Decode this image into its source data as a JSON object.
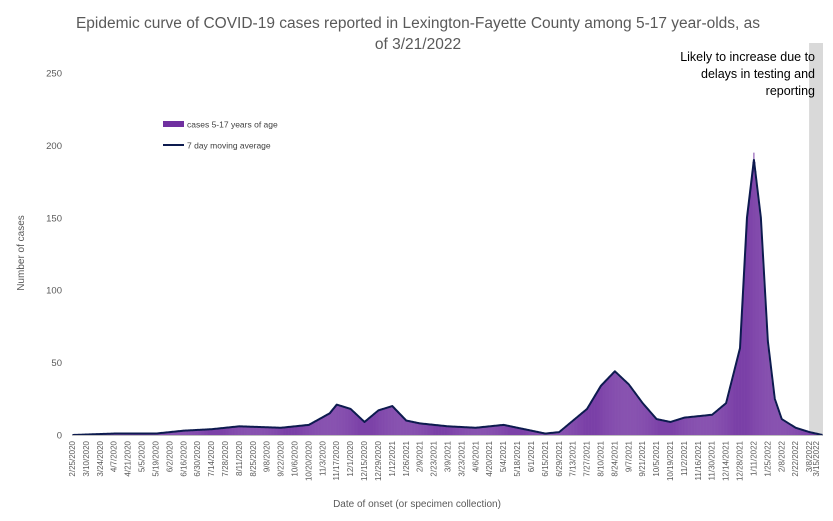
{
  "chart_data": {
    "type": "bar",
    "title": "Epidemic curve of COVID-19 cases reported in Lexington-Fayette County among 5-17 year-olds, as of 3/21/2022",
    "title_lines": [
      "Epidemic curve of COVID-19 cases reported in Lexington-Fayette County among 5-17 year-olds, as",
      "of 3/21/2022"
    ],
    "xlabel": "Date of onset (or specimen collection)",
    "ylabel": "Number of cases",
    "ylim": [
      0,
      250
    ],
    "yticks": [
      0,
      50,
      100,
      150,
      200,
      250
    ],
    "x_start_date": "2020-02-25",
    "x_end_date": "2022-03-21",
    "x_tick_labels": [
      "2/25/2020",
      "3/10/2020",
      "3/24/2020",
      "4/7/2020",
      "4/21/2020",
      "5/5/2020",
      "5/19/2020",
      "6/2/2020",
      "6/16/2020",
      "6/30/2020",
      "7/14/2020",
      "7/28/2020",
      "8/11/2020",
      "8/25/2020",
      "9/8/2020",
      "9/22/2020",
      "10/6/2020",
      "10/20/2020",
      "11/3/2020",
      "11/17/2020",
      "12/1/2020",
      "12/15/2020",
      "12/29/2020",
      "1/12/2021",
      "1/26/2021",
      "2/9/2021",
      "2/23/2021",
      "3/9/2021",
      "3/23/2021",
      "4/6/2021",
      "4/20/2021",
      "5/4/2021",
      "5/18/2021",
      "6/1/2021",
      "6/15/2021",
      "6/29/2021",
      "7/13/2021",
      "7/27/2021",
      "8/10/2021",
      "8/24/2021",
      "9/7/2021",
      "9/21/2021",
      "10/5/2021",
      "10/19/2021",
      "11/2/2021",
      "11/16/2021",
      "11/30/2021",
      "12/14/2021",
      "12/28/2021",
      "1/11/2022",
      "1/25/2022",
      "2/8/2022",
      "2/22/2022",
      "3/8/2022",
      "3/15/2022"
    ],
    "series": [
      {
        "name": "cases 5-17 years of age",
        "kind": "bar",
        "color": "#7030a0",
        "anchor_dates": [
          "2020-02-25",
          "2020-04-07",
          "2020-05-19",
          "2020-06-16",
          "2020-07-14",
          "2020-08-11",
          "2020-09-22",
          "2020-10-20",
          "2020-11-10",
          "2020-11-17",
          "2020-12-01",
          "2020-12-15",
          "2020-12-29",
          "2021-01-12",
          "2021-01-26",
          "2021-02-09",
          "2021-03-09",
          "2021-04-06",
          "2021-04-20",
          "2021-05-04",
          "2021-05-18",
          "2021-06-01",
          "2021-06-15",
          "2021-06-29",
          "2021-07-13",
          "2021-07-27",
          "2021-08-10",
          "2021-08-24",
          "2021-09-07",
          "2021-09-21",
          "2021-10-05",
          "2021-10-19",
          "2021-11-02",
          "2021-11-16",
          "2021-11-30",
          "2021-12-14",
          "2021-12-28",
          "2022-01-04",
          "2022-01-11",
          "2022-01-18",
          "2022-01-25",
          "2022-02-01",
          "2022-02-08",
          "2022-02-22",
          "2022-03-08",
          "2022-03-21"
        ],
        "anchor_values": [
          0,
          1,
          1,
          3,
          4,
          6,
          5,
          7,
          15,
          21,
          18,
          9,
          17,
          20,
          10,
          8,
          6,
          5,
          6,
          7,
          5,
          3,
          1,
          2,
          10,
          18,
          34,
          44,
          35,
          22,
          11,
          9,
          12,
          13,
          14,
          22,
          60,
          150,
          195,
          150,
          65,
          25,
          11,
          5,
          2,
          0
        ]
      },
      {
        "name": "7 day moving average",
        "kind": "line",
        "color": "#0d1b4f",
        "anchor_dates": [
          "2020-02-25",
          "2020-04-07",
          "2020-05-19",
          "2020-06-16",
          "2020-07-14",
          "2020-08-11",
          "2020-09-22",
          "2020-10-20",
          "2020-11-10",
          "2020-11-17",
          "2020-12-01",
          "2020-12-15",
          "2020-12-29",
          "2021-01-12",
          "2021-01-26",
          "2021-02-09",
          "2021-03-09",
          "2021-04-06",
          "2021-04-20",
          "2021-05-04",
          "2021-05-18",
          "2021-06-01",
          "2021-06-15",
          "2021-06-29",
          "2021-07-13",
          "2021-07-27",
          "2021-08-10",
          "2021-08-24",
          "2021-09-07",
          "2021-09-21",
          "2021-10-05",
          "2021-10-19",
          "2021-11-02",
          "2021-11-16",
          "2021-11-30",
          "2021-12-14",
          "2021-12-28",
          "2022-01-04",
          "2022-01-11",
          "2022-01-18",
          "2022-01-25",
          "2022-02-01",
          "2022-02-08",
          "2022-02-22",
          "2022-03-08",
          "2022-03-21"
        ],
        "anchor_values": [
          0,
          1,
          1,
          3,
          4,
          6,
          5,
          7,
          15,
          21,
          18,
          9,
          17,
          20,
          10,
          8,
          6,
          5,
          6,
          7,
          5,
          3,
          1,
          2,
          10,
          18,
          34,
          44,
          35,
          22,
          11,
          9,
          12,
          13,
          14,
          22,
          60,
          150,
          190,
          150,
          65,
          25,
          11,
          5,
          2,
          0
        ]
      }
    ],
    "annotation": {
      "lines": [
        "Likely to increase due to",
        "delays in testing and",
        "reporting"
      ],
      "shaded_start": "2022-03-08",
      "shaded_end": "2022-03-21",
      "shade_color": "#d9d9d9"
    },
    "legend": {
      "placement": "upper-left",
      "items": [
        "cases 5-17 years of age",
        "7 day moving average"
      ]
    }
  }
}
